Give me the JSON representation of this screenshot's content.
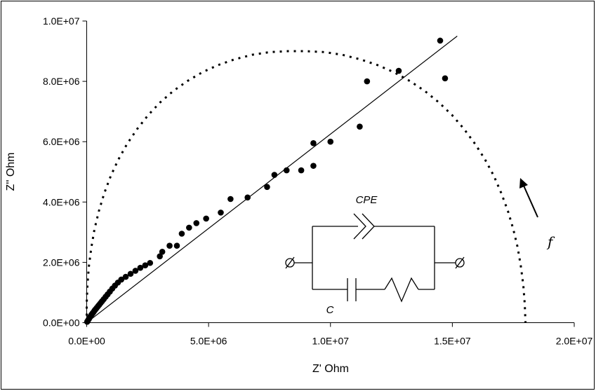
{
  "chart_data": {
    "type": "scatter",
    "xlabel": "Z' Ohm",
    "ylabel": "Z'' Ohm",
    "xlim": [
      0,
      20000000
    ],
    "ylim": [
      0,
      10000000
    ],
    "x_ticks": [
      0,
      5000000,
      10000000,
      15000000,
      20000000
    ],
    "x_tick_labels": [
      "0.0E+00",
      "5.0E+06",
      "1.0E+07",
      "1.5E+07",
      "2.0E+07"
    ],
    "y_ticks": [
      0,
      2000000,
      4000000,
      6000000,
      8000000,
      10000000
    ],
    "y_tick_labels": [
      "0.0E+00",
      "2.0E+06",
      "4.0E+06",
      "6.0E+06",
      "8.0E+06",
      "1.0E+07"
    ],
    "grid": false,
    "series": [
      {
        "kind": "scatter",
        "points": [
          [
            20000,
            30000
          ],
          [
            50000,
            70000
          ],
          [
            80000,
            110000
          ],
          [
            110000,
            150000
          ],
          [
            140000,
            190000
          ],
          [
            170000,
            230000
          ],
          [
            200000,
            270000
          ],
          [
            240000,
            310000
          ],
          [
            280000,
            350000
          ],
          [
            320000,
            400000
          ],
          [
            360000,
            440000
          ],
          [
            410000,
            490000
          ],
          [
            460000,
            540000
          ],
          [
            510000,
            590000
          ],
          [
            570000,
            650000
          ],
          [
            630000,
            710000
          ],
          [
            700000,
            780000
          ],
          [
            780000,
            860000
          ],
          [
            860000,
            940000
          ],
          [
            950000,
            1030000
          ],
          [
            1050000,
            1130000
          ],
          [
            1160000,
            1230000
          ],
          [
            1280000,
            1330000
          ],
          [
            1420000,
            1430000
          ],
          [
            1600000,
            1520000
          ],
          [
            1800000,
            1620000
          ],
          [
            2000000,
            1720000
          ],
          [
            2200000,
            1820000
          ],
          [
            2400000,
            1900000
          ],
          [
            2600000,
            1980000
          ],
          [
            3000000,
            2200000
          ],
          [
            3100000,
            2350000
          ],
          [
            3400000,
            2550000
          ],
          [
            3700000,
            2550000
          ],
          [
            3900000,
            2950000
          ],
          [
            4200000,
            3150000
          ],
          [
            4500000,
            3300000
          ],
          [
            4900000,
            3450000
          ],
          [
            5500000,
            3650000
          ],
          [
            5900000,
            4100000
          ],
          [
            6600000,
            4150000
          ],
          [
            7400000,
            4500000
          ],
          [
            7700000,
            4900000
          ],
          [
            8200000,
            5050000
          ],
          [
            8800000,
            5050000
          ],
          [
            9300000,
            5200000
          ],
          [
            9300000,
            5950000
          ],
          [
            10000000,
            6000000
          ],
          [
            11200000,
            6500000
          ],
          [
            11500000,
            8000000
          ],
          [
            12800000,
            8350000
          ],
          [
            14500000,
            9350000
          ],
          [
            14700000,
            8100000
          ]
        ]
      },
      {
        "kind": "line",
        "style": "solid",
        "points": [
          [
            0,
            0
          ],
          [
            15200000,
            9500000
          ]
        ]
      },
      {
        "kind": "line",
        "style": "dashed",
        "points": [
          [
            0,
            0
          ],
          [
            0,
            620000
          ],
          [
            30000,
            1250000
          ],
          [
            90000,
            1870000
          ],
          [
            190000,
            2490000
          ],
          [
            320000,
            3100000
          ],
          [
            500000,
            3700000
          ],
          [
            720000,
            4290000
          ],
          [
            990000,
            4870000
          ],
          [
            1300000,
            5410000
          ],
          [
            1660000,
            5930000
          ],
          [
            2070000,
            6420000
          ],
          [
            2520000,
            6880000
          ],
          [
            3010000,
            7300000
          ],
          [
            3550000,
            7680000
          ],
          [
            4130000,
            8010000
          ],
          [
            4740000,
            8300000
          ],
          [
            5390000,
            8540000
          ],
          [
            6070000,
            8730000
          ],
          [
            6780000,
            8880000
          ],
          [
            7510000,
            8970000
          ],
          [
            8250000,
            9000000
          ],
          [
            9000000,
            9000000
          ],
          [
            9750000,
            8970000
          ],
          [
            10490000,
            8880000
          ],
          [
            11220000,
            8730000
          ],
          [
            11930000,
            8540000
          ],
          [
            12610000,
            8300000
          ],
          [
            13260000,
            8010000
          ],
          [
            13870000,
            7680000
          ],
          [
            14450000,
            7300000
          ],
          [
            14990000,
            6880000
          ],
          [
            15480000,
            6420000
          ],
          [
            15930000,
            5930000
          ],
          [
            16340000,
            5410000
          ],
          [
            16700000,
            4870000
          ],
          [
            17010000,
            4290000
          ],
          [
            17280000,
            3700000
          ],
          [
            17500000,
            3100000
          ],
          [
            17680000,
            2490000
          ],
          [
            17810000,
            1870000
          ],
          [
            17910000,
            1250000
          ],
          [
            17970000,
            620000
          ],
          [
            18000000,
            0
          ]
        ]
      }
    ],
    "annotations": {
      "circuit_top_label": "CPE",
      "circuit_bottom_label": "C",
      "arrow_label": "f"
    }
  }
}
